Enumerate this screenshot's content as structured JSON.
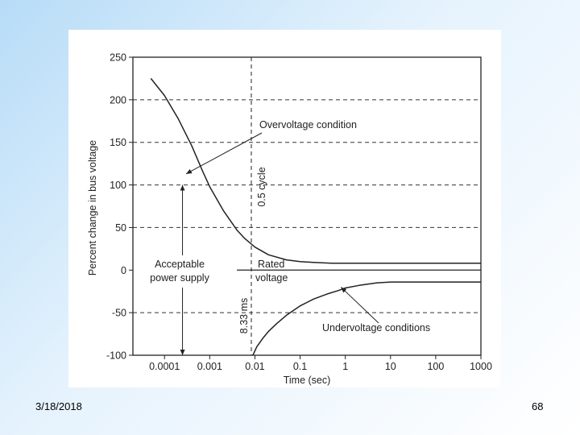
{
  "slide": {
    "date": "3/18/2018",
    "page_number": "68"
  },
  "chart_data": {
    "type": "line",
    "title": "",
    "xlabel": "Time (sec)",
    "ylabel": "Percent change in bus voltage",
    "xscale": "log",
    "xlim": [
      2e-05,
      1000
    ],
    "ylim": [
      -100,
      250
    ],
    "x_ticks": [
      {
        "value": 0.0001,
        "label": "0.0001"
      },
      {
        "value": 0.001,
        "label": "0.001"
      },
      {
        "value": 0.01,
        "label": "0.01"
      },
      {
        "value": 0.1,
        "label": "0.1"
      },
      {
        "value": 1,
        "label": "1"
      },
      {
        "value": 10,
        "label": "10"
      },
      {
        "value": 100,
        "label": "100"
      },
      {
        "value": 1000,
        "label": "1000"
      }
    ],
    "y_ticks": [
      250,
      200,
      150,
      100,
      50,
      0,
      -50,
      -100
    ],
    "grid": "dashed horizontal",
    "series": [
      {
        "name": "Overvoltage condition",
        "x": [
          5e-05,
          0.0001,
          0.0002,
          0.0004,
          0.0007,
          0.001,
          0.002,
          0.004,
          0.006,
          0.01,
          0.02,
          0.05,
          0.1,
          0.2,
          0.5,
          1,
          10,
          100,
          1000
        ],
        "y": [
          225,
          205,
          178,
          146,
          116,
          98,
          70,
          47,
          37,
          27,
          18,
          12,
          10,
          9,
          8,
          8,
          8,
          8,
          8
        ]
      },
      {
        "name": "Undervoltage conditions",
        "x": [
          0.009,
          0.011,
          0.015,
          0.02,
          0.03,
          0.05,
          0.1,
          0.2,
          0.4,
          0.7,
          1,
          2,
          5,
          10,
          100,
          1000
        ],
        "y": [
          -100,
          -90,
          -80,
          -72,
          -63,
          -53,
          -42,
          -34,
          -28,
          -24,
          -21,
          -18,
          -15,
          -14,
          -14,
          -14
        ]
      }
    ],
    "reference_lines": [
      {
        "axis": "x",
        "value": 0.00833,
        "label_top": "0.5 cycle",
        "label_bottom": "8.33 ms",
        "style": "dashed"
      },
      {
        "axis": "y",
        "value": 0,
        "label_top": "Rated",
        "label_bottom": "voltage",
        "style": "solid"
      }
    ],
    "annotations": {
      "overvoltage_label": "Overvoltage condition",
      "undervoltage_label": "Undervoltage conditions",
      "acceptable_line1": "Acceptable",
      "acceptable_line2": "power supply",
      "acceptable_range": [
        -100,
        100
      ],
      "acceptable_x": 0.00025
    }
  }
}
